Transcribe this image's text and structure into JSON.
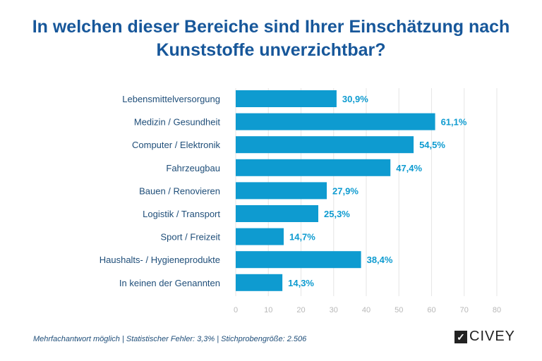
{
  "title_line1": "In welchen dieser Bereiche sind Ihrer Einschätzung nach",
  "title_line2": "Kunststoffe unverzichtbar?",
  "chart_data": {
    "type": "bar",
    "orientation": "horizontal",
    "title": "In welchen dieser Bereiche sind Ihrer Einschätzung nach Kunststoffe unverzichtbar?",
    "categories": [
      "Lebensmittelversorgung",
      "Medizin / Gesundheit",
      "Computer / Elektronik",
      "Fahrzeugbau",
      "Bauen / Renovieren",
      "Logistik / Transport",
      "Sport / Freizeit",
      "Haushalts- / Hygieneprodukte",
      "In keinen der Genannten"
    ],
    "values": [
      30.9,
      61.1,
      54.5,
      47.4,
      27.9,
      25.3,
      14.7,
      38.4,
      14.3
    ],
    "value_labels": [
      "30,9%",
      "61,1%",
      "54,5%",
      "47,4%",
      "27,9%",
      "25,3%",
      "14,7%",
      "38,4%",
      "14,3%"
    ],
    "xlim": [
      0,
      80
    ],
    "xticks": [
      "0",
      "10",
      "20",
      "30",
      "40",
      "50",
      "60",
      "70",
      "80"
    ],
    "grid": true,
    "bar_color": "#0e9bd0"
  },
  "footer": "Mehrfachantwort möglich  |  Statistischer Fehler: 3,3%  |  Stichprobengröße: 2.506",
  "logo": "CIVEY"
}
